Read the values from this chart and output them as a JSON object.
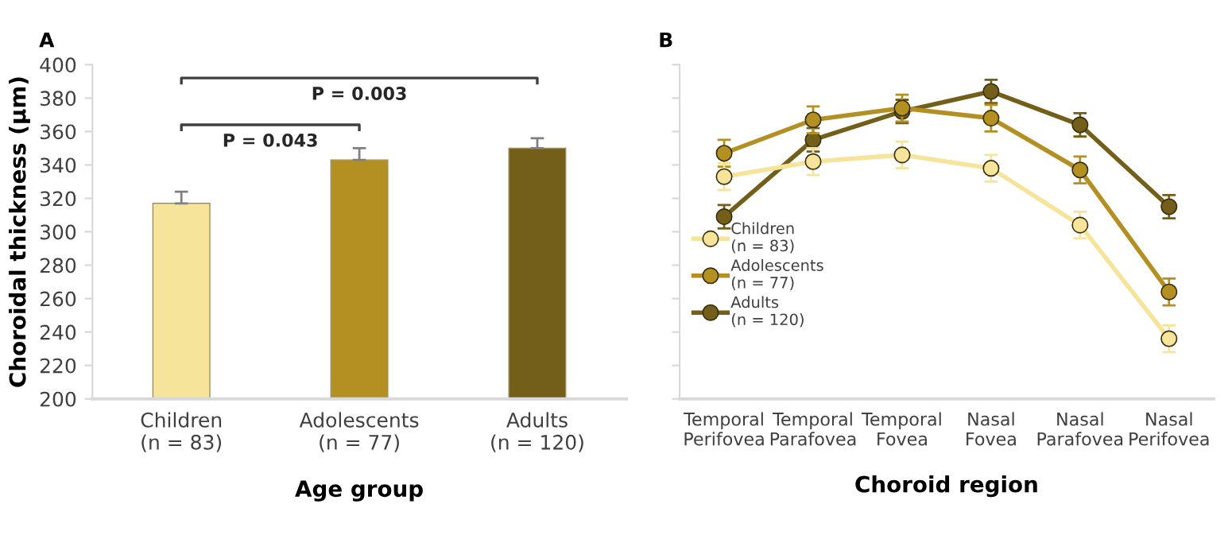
{
  "chart_data": [
    {
      "type": "bar",
      "title": "A",
      "xlabel": "Age group",
      "ylabel": "Choroidal thickness (µm)",
      "categories": [
        "Children\n(n = 83)",
        "Adolescents\n(n = 77)",
        "Adults\n(n = 120)"
      ],
      "values": [
        317,
        343,
        350
      ],
      "colors": [
        "#f5e49a",
        "#b48f22",
        "#735f19"
      ],
      "errors": [
        [
          317,
          324
        ],
        [
          343,
          350
        ],
        [
          350,
          356
        ]
      ],
      "ylim": [
        200,
        400
      ],
      "yticks": [
        200,
        220,
        240,
        260,
        280,
        300,
        320,
        340,
        360,
        380,
        400
      ],
      "annotations": [
        "P = 0.043",
        "P = 0.003"
      ],
      "grid": false,
      "legend": false
    },
    {
      "type": "line",
      "title": "B",
      "xlabel": "Choroid region",
      "categories": [
        "Temporal\nPerifovea",
        "Temporal\nParafovea",
        "Temporal\nFovea",
        "Nasal\nFovea",
        "Nasal\nParafovea",
        "Nasal\nPerifovea"
      ],
      "series": [
        {
          "name": "Children\n(n = 83)",
          "color": "#f5e49a",
          "values": [
            333,
            342,
            346,
            338,
            304,
            236
          ],
          "errors": [
            8,
            8,
            8,
            8,
            8,
            8
          ]
        },
        {
          "name": "Adolescents\n(n = 77)",
          "color": "#b48f22",
          "values": [
            347,
            367,
            374,
            368,
            337,
            264
          ],
          "errors": [
            8,
            8,
            8,
            8,
            8,
            8
          ]
        },
        {
          "name": "Adults\n(n = 120)",
          "color": "#735f19",
          "values": [
            309,
            355,
            372,
            384,
            364,
            315
          ],
          "errors": [
            7,
            7,
            7,
            7,
            7,
            7
          ]
        }
      ],
      "ylim": [
        200,
        400
      ],
      "yticks": [
        200,
        220,
        240,
        260,
        280,
        300,
        320,
        340,
        360,
        380,
        400
      ],
      "tick_labels": "x",
      "marker": "circle",
      "line_style": "solid",
      "grid": false,
      "legend": "left"
    }
  ]
}
